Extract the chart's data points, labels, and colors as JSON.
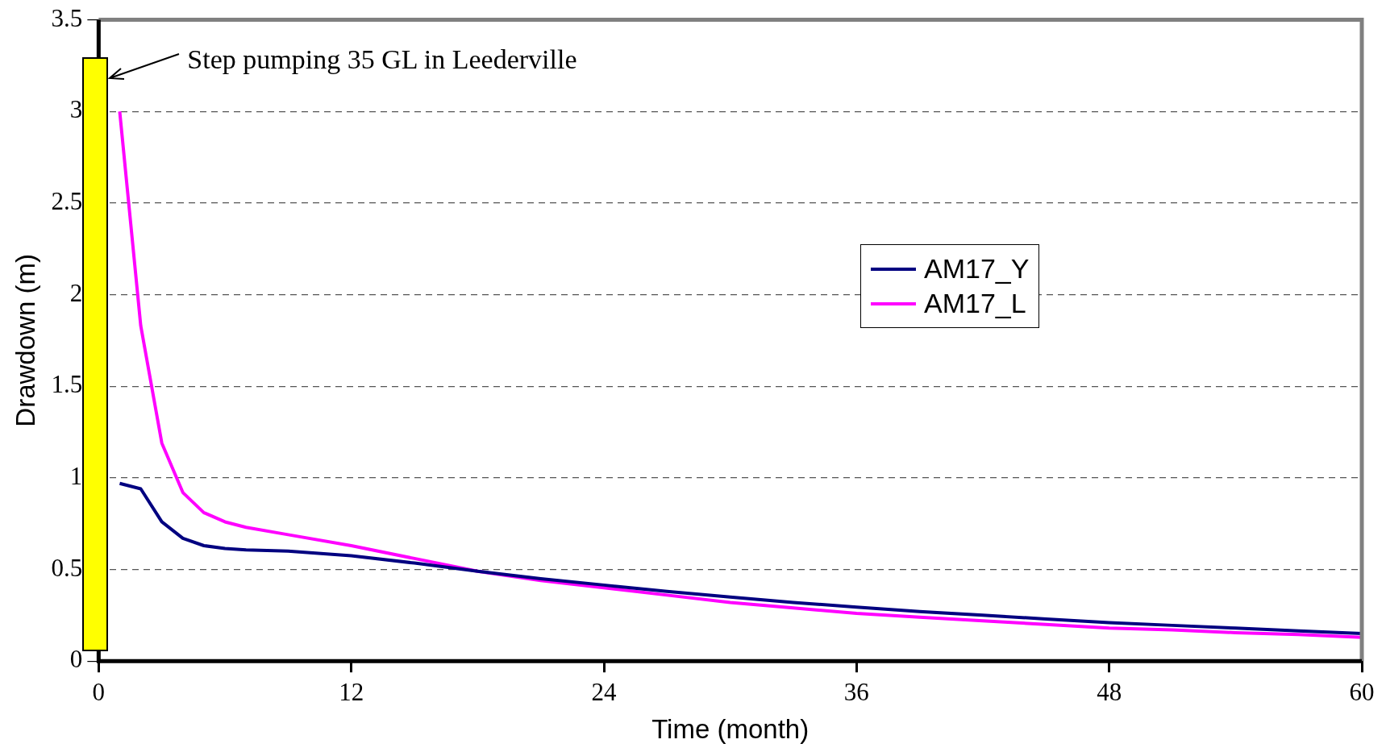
{
  "chart_data": {
    "type": "line",
    "xlabel": "Time (month)",
    "ylabel": "Drawdown (m)",
    "x": [
      1,
      2,
      3,
      4,
      5,
      6,
      7,
      9,
      12,
      15,
      18,
      21,
      24,
      27,
      30,
      33,
      36,
      39,
      42,
      45,
      48,
      51,
      54,
      57,
      60
    ],
    "series": [
      {
        "name": "AM17_Y",
        "color": "#000080",
        "values": [
          0.97,
          0.94,
          0.76,
          0.67,
          0.63,
          0.615,
          0.607,
          0.6,
          0.575,
          0.535,
          0.49,
          0.45,
          0.415,
          0.38,
          0.35,
          0.32,
          0.295,
          0.27,
          0.25,
          0.23,
          0.21,
          0.195,
          0.18,
          0.165,
          0.15
        ]
      },
      {
        "name": "AM17_L",
        "color": "#ff00ff",
        "values": [
          3.0,
          1.83,
          1.19,
          0.92,
          0.81,
          0.76,
          0.73,
          0.69,
          0.63,
          0.56,
          0.49,
          0.44,
          0.4,
          0.36,
          0.32,
          0.29,
          0.26,
          0.24,
          0.22,
          0.2,
          0.18,
          0.17,
          0.155,
          0.145,
          0.13
        ]
      }
    ],
    "xlim": [
      0,
      60
    ],
    "xticks": [
      0,
      12,
      24,
      36,
      48,
      60
    ],
    "ylim": [
      0,
      3.5
    ],
    "yticks": [
      0,
      0.5,
      1,
      1.5,
      2,
      2.5,
      3,
      3.5
    ],
    "grid": "y",
    "legend": "right",
    "marker": "none",
    "line_style": "solid",
    "annotations": [
      "Step pumping  35 GL in Leederville"
    ]
  }
}
